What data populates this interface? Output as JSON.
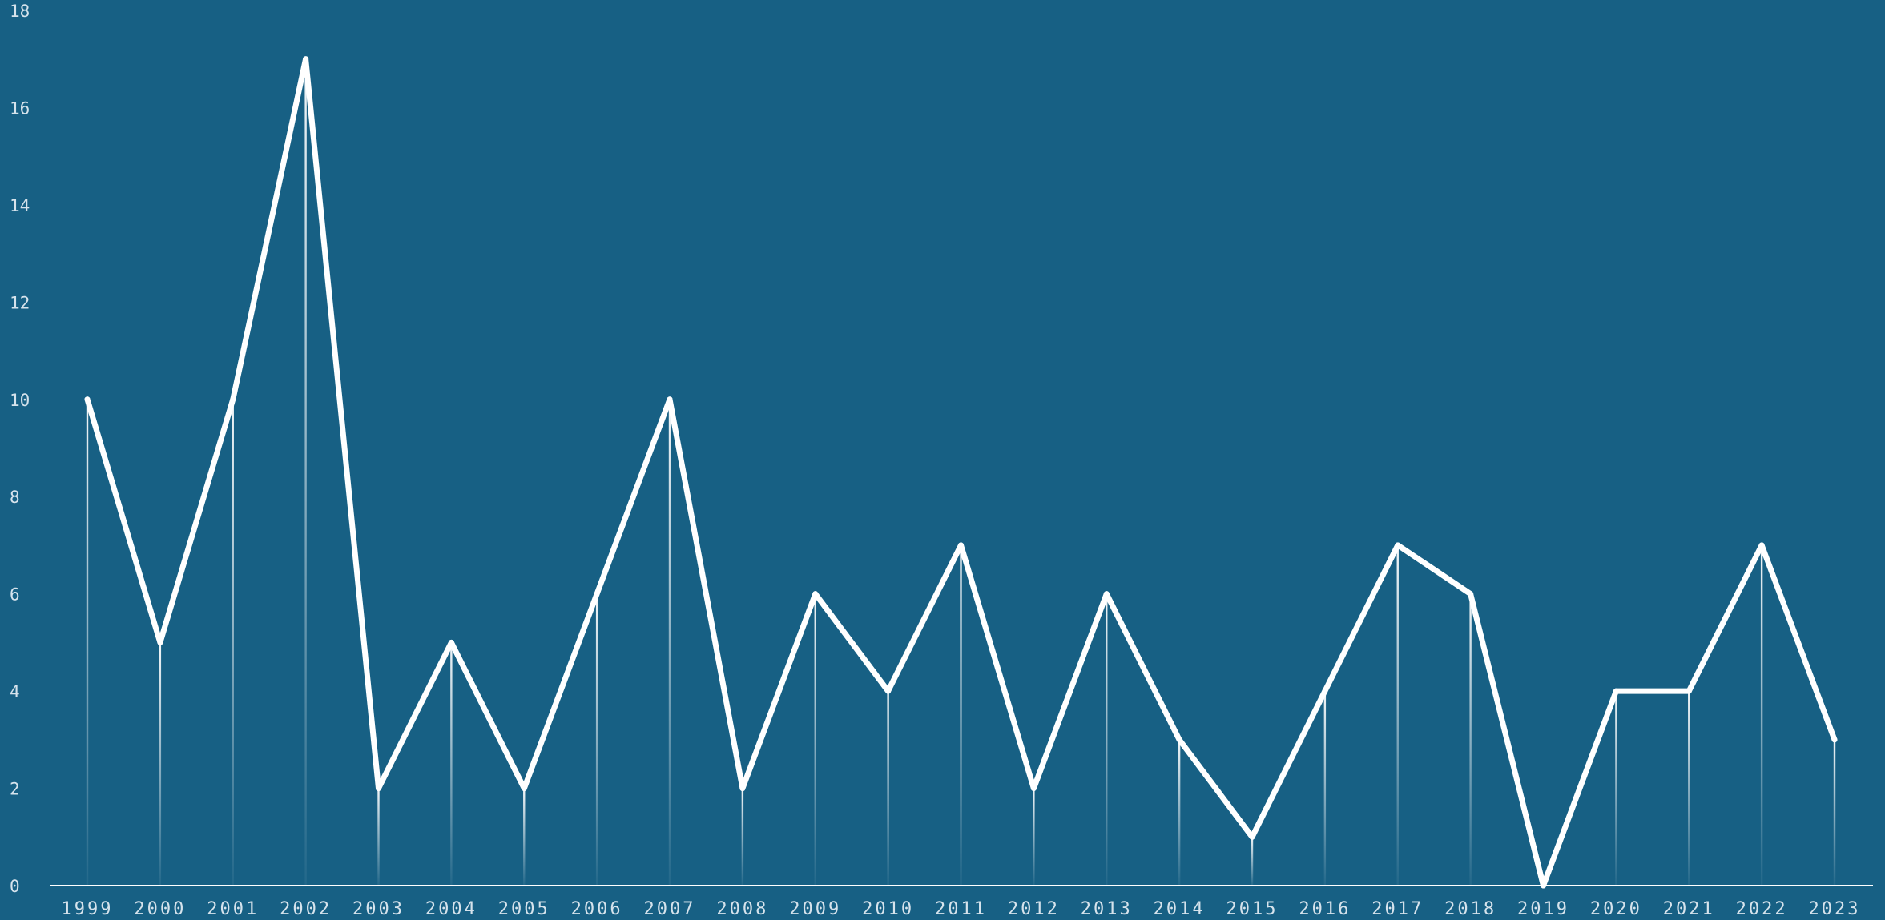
{
  "colors": {
    "background": "#176084",
    "line": "#ffffff",
    "tick_text": "#d6e3ec"
  },
  "chart_data": {
    "type": "line",
    "title": "",
    "xlabel": "",
    "ylabel": "",
    "x": [
      "1999",
      "2000",
      "2001",
      "2002",
      "2003",
      "2004",
      "2005",
      "2006",
      "2007",
      "2008",
      "2009",
      "2010",
      "2011",
      "2012",
      "2013",
      "2014",
      "2015",
      "2016",
      "2017",
      "2018",
      "2019",
      "2020",
      "2021",
      "2022",
      "2023"
    ],
    "series": [
      {
        "values": [
          10,
          5,
          10,
          17,
          2,
          5,
          2,
          6,
          10,
          2,
          6,
          4,
          7,
          2,
          6,
          3,
          1,
          4,
          7,
          6,
          0,
          4,
          4,
          7,
          3
        ]
      }
    ],
    "ylim": [
      0,
      18
    ],
    "yticks": [
      0,
      2,
      4,
      6,
      8,
      10,
      12,
      14,
      16,
      18
    ],
    "grid": false,
    "legend": "none",
    "drop_lines": true
  }
}
